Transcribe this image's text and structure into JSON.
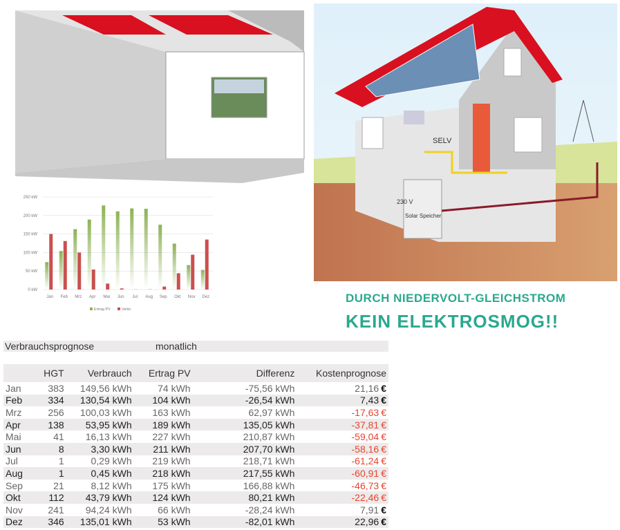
{
  "slogan": {
    "line1": "DURCH NIEDERVOLT-GLEICHSTROM",
    "line2": "KEIN ELEKTROSMOG!!"
  },
  "house_labels": {
    "selv": "SELV",
    "v230": "230 V",
    "storage": "Solar Speicher"
  },
  "colors": {
    "accent": "#2aa88f",
    "pv": "#8db255",
    "verbr": "#c9504f",
    "negative": "#e8432e",
    "roof": "#d9101f"
  },
  "chart_data": {
    "type": "bar",
    "categories": [
      "Jan",
      "Feb",
      "Mrz",
      "Apr",
      "Mai",
      "Jun",
      "Jul",
      "Aug",
      "Sep",
      "Okt",
      "Nov",
      "Dez"
    ],
    "series": [
      {
        "name": "Ertrag PV",
        "values": [
          74,
          104,
          163,
          189,
          227,
          211,
          219,
          218,
          175,
          124,
          66,
          53
        ]
      },
      {
        "name": "Verbr.",
        "values": [
          150,
          131,
          100,
          54,
          16,
          3,
          0.3,
          0.5,
          8,
          44,
          94,
          135
        ]
      }
    ],
    "yticks": [
      "0 kW",
      "50 kW",
      "100 kW",
      "150 kW",
      "200 kW",
      "250 kW"
    ],
    "ylim": [
      0,
      250
    ],
    "grid": true,
    "legend": "bottom"
  },
  "forecast": {
    "title": "Verbrauchsprognose",
    "period": "monatlich",
    "columns": [
      "",
      "HGT",
      "Verbrauch",
      "Ertrag PV",
      "Differenz",
      "Kostenprognose"
    ],
    "rows": [
      [
        "Jan",
        "383",
        "149,56 kWh",
        "74 kWh",
        "-75,56 kWh",
        "21,16"
      ],
      [
        "Feb",
        "334",
        "130,54 kWh",
        "104 kWh",
        "-26,54 kWh",
        "7,43"
      ],
      [
        "Mrz",
        "256",
        "100,03 kWh",
        "163 kWh",
        "62,97 kWh",
        "-17,63"
      ],
      [
        "Apr",
        "138",
        "53,95 kWh",
        "189 kWh",
        "135,05 kWh",
        "-37,81"
      ],
      [
        "Mai",
        "41",
        "16,13 kWh",
        "227 kWh",
        "210,87 kWh",
        "-59,04"
      ],
      [
        "Jun",
        "8",
        "3,30 kWh",
        "211 kWh",
        "207,70 kWh",
        "-58,16"
      ],
      [
        "Jul",
        "1",
        "0,29 kWh",
        "219 kWh",
        "218,71 kWh",
        "-61,24"
      ],
      [
        "Aug",
        "1",
        "0,45 kWh",
        "218 kWh",
        "217,55 kWh",
        "-60,91"
      ],
      [
        "Sep",
        "21",
        "8,12 kWh",
        "175 kWh",
        "166,88 kWh",
        "-46,73"
      ],
      [
        "Okt",
        "112",
        "43,79 kWh",
        "124 kWh",
        "80,21 kWh",
        "-22,46"
      ],
      [
        "Nov",
        "241",
        "94,24 kWh",
        "66 kWh",
        "-28,24 kWh",
        "7,91"
      ],
      [
        "Dez",
        "346",
        "135,01 kWh",
        "53 kWh",
        "-82,01 kWh",
        "22,96"
      ]
    ],
    "currency": "€"
  }
}
